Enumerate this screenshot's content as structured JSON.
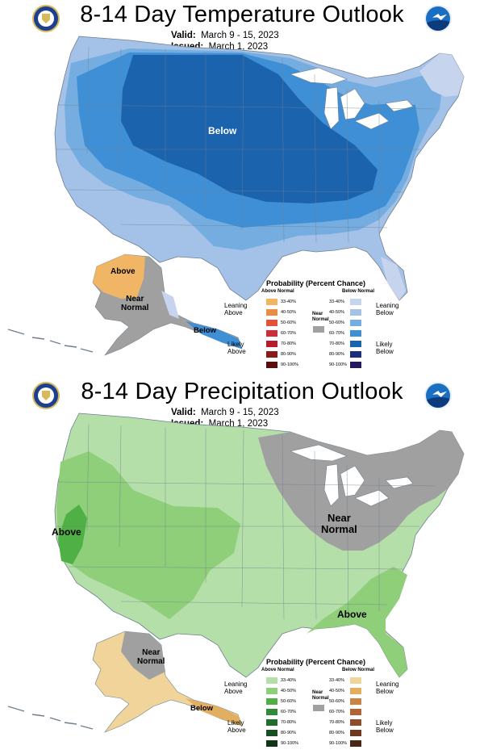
{
  "temperature_panel": {
    "title": "8-14 Day Temperature Outlook",
    "valid_label": "Valid:",
    "valid_value": "March 9 - 15, 2023",
    "issued_label": "Issued:",
    "issued_value": "March 1, 2023",
    "regions": {
      "below": "Below",
      "above_alaska": "Above",
      "near_normal_alaska": "Near\nNormal",
      "below_alaska": "Below"
    },
    "legend": {
      "title": "Probability (Percent Chance)",
      "above_header": "Above Normal",
      "below_header": "Below Normal",
      "near_label": "Near\nNormal",
      "leaning_above": "Leaning\nAbove",
      "likely_above": "Likely\nAbove",
      "leaning_below": "Leaning\nBelow",
      "likely_below": "Likely\nBelow",
      "steps": [
        "33-40%",
        "40-50%",
        "50-60%",
        "60-70%",
        "70-80%",
        "80-90%",
        "90-100%"
      ],
      "above_colors": [
        "#f0b565",
        "#ec8c3e",
        "#e1543a",
        "#cf2c3a",
        "#b41e2c",
        "#8b1a1a",
        "#5a0f0f"
      ],
      "below_colors": [
        "#c7d4ee",
        "#a4c2e7",
        "#75ade0",
        "#3f8fd6",
        "#1c63ad",
        "#1b2f7c",
        "#221a5a"
      ],
      "near_color": "#a0a0a0"
    }
  },
  "precipitation_panel": {
    "title": "8-14 Day Precipitation Outlook",
    "valid_label": "Valid:",
    "valid_value": "March 9 - 15, 2023",
    "issued_label": "Issued:",
    "issued_value": "March 1, 2023",
    "regions": {
      "above_west": "Above",
      "near_normal_great_lakes": "Near\nNormal",
      "above_southeast": "Above",
      "near_normal_alaska": "Near\nNormal",
      "below_alaska": "Below"
    },
    "legend": {
      "title": "Probability (Percent Chance)",
      "above_header": "Above Normal",
      "below_header": "Below Normal",
      "near_label": "Near\nNormal",
      "leaning_above": "Leaning\nAbove",
      "likely_above": "Likely\nAbove",
      "leaning_below": "Leaning\nBelow",
      "likely_below": "Likely\nBelow",
      "steps": [
        "33-40%",
        "40-50%",
        "50-60%",
        "60-70%",
        "70-80%",
        "80-90%",
        "90-100%"
      ],
      "above_colors": [
        "#b5dfa8",
        "#8fcf7a",
        "#4fb045",
        "#2f8a3a",
        "#1f6e2e",
        "#174f22",
        "#0e3515"
      ],
      "below_colors": [
        "#f0d49a",
        "#e1ae62",
        "#c98343",
        "#b0643a",
        "#8e4e2a",
        "#6c3a1f",
        "#4a2714"
      ],
      "near_color": "#a0a0a0"
    }
  },
  "logos": {
    "left": "commerce-seal-icon",
    "right": "noaa-logo-icon",
    "noaa_text": "NOAA"
  },
  "colors": {
    "state_line": "#6f7f8f",
    "water": "#ffffff",
    "near_normal": "#a0a0a0"
  }
}
